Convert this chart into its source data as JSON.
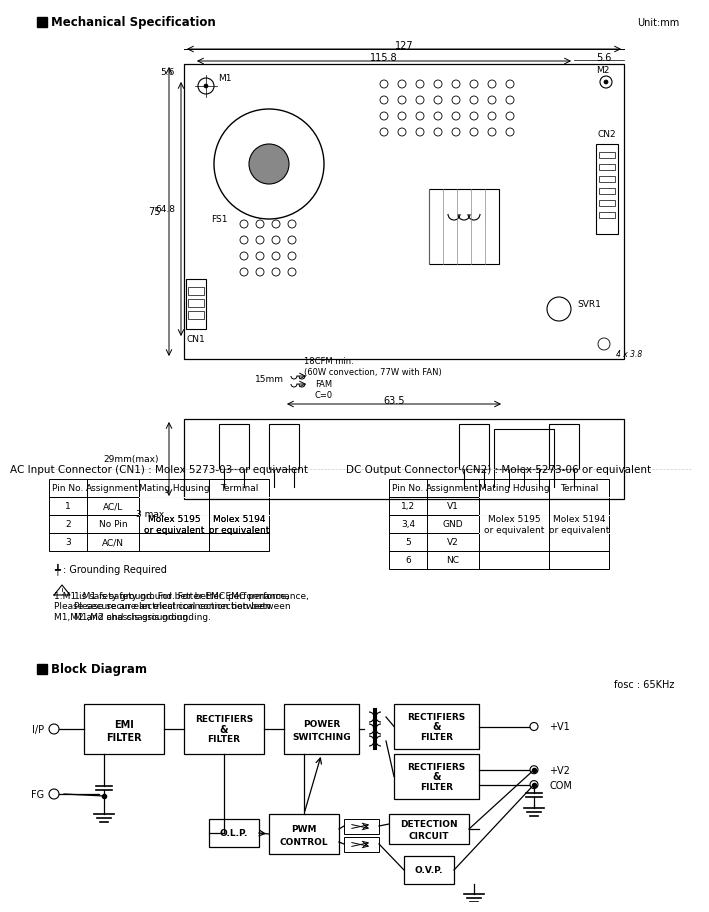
{
  "title_mech": "Mechanical Specification",
  "unit_label": "Unit:mm",
  "title_block": "Block Diagram",
  "fosc_label": "fosc : 65KHz",
  "bg_color": "#ffffff",
  "border_color": "#000000",
  "ac_table_title": "AC Input Connector (CN1) : Molex 5273-03  or equivalent",
  "dc_table_title": "DC Output Connector (CN2) : Molex 5273-06 or equivalent",
  "ac_headers": [
    "Pin No.",
    "Assignment",
    "Mating Housing",
    "Terminal"
  ],
  "ac_rows": [
    [
      "1",
      "AC/L",
      "",
      ""
    ],
    [
      "2",
      "No Pin",
      "Molex 5195\nor equivalent",
      "Molex 5194\nor equivalent"
    ],
    [
      "3",
      "AC/N",
      "",
      ""
    ]
  ],
  "dc_headers": [
    "Pin No.",
    "Assignment",
    "Mating Housing",
    "Terminal"
  ],
  "dc_rows": [
    [
      "1,2",
      "V1",
      "",
      ""
    ],
    [
      "3,4",
      "GND",
      "Molex 5195\nor equivalent",
      "Molex 5194\nor equivalent"
    ],
    [
      "5",
      "V2",
      "",
      ""
    ],
    [
      "6",
      "NC",
      "",
      ""
    ]
  ],
  "ground_note": "╇ : Grounding Required",
  "warning_note": "1.M1 is safety ground. For better EMC performance,\nPlease secure an electrical connection between\nM1,M2 and chassis grounding.",
  "dim_127": "127",
  "dim_1158": "115.8",
  "dim_56_top": "5.6",
  "dim_75": "75",
  "dim_648": "64.8",
  "dim_56_side": "5.6",
  "dim_635": "63.5",
  "dim_15": "15mm",
  "dim_cfm": "18CFM min.\n(60W convection, 77W with FAN)",
  "dim_29": "29mm(max)",
  "dim_3max": "3 max",
  "label_M1": "M1",
  "label_M2": "M2",
  "label_CN1": "CN1",
  "label_CN2": "CN2",
  "label_FS1": "FS1",
  "label_SVR1": "SVR1",
  "label_FAM": "FAM\nC=0"
}
